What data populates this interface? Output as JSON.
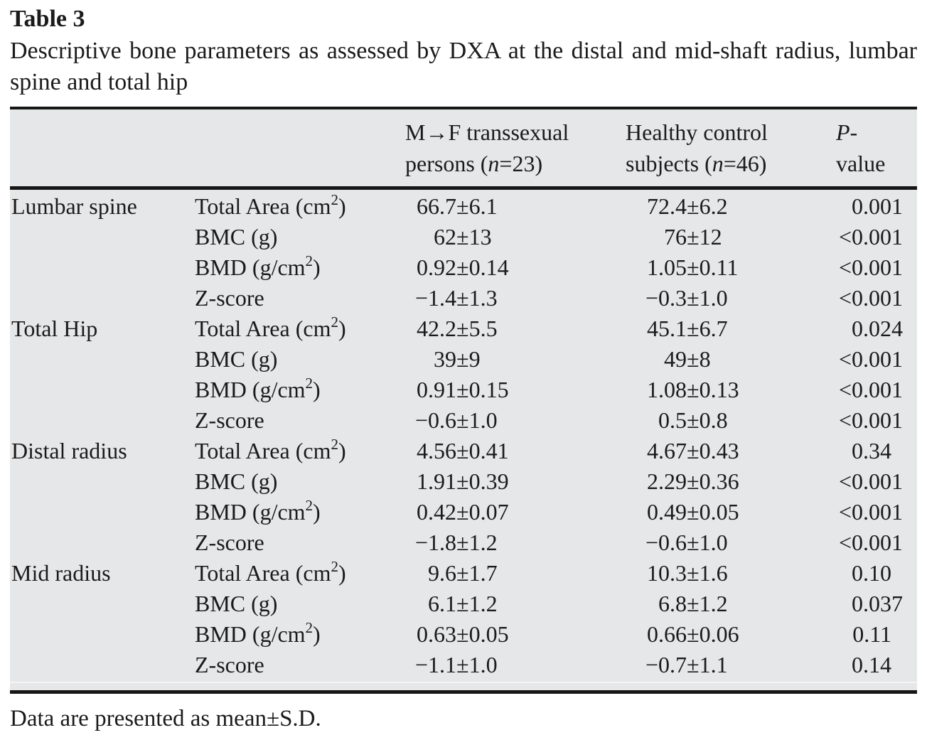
{
  "title": {
    "label": "Table 3",
    "caption": "Descriptive bone parameters as assessed by DXA at the distal and mid-shaft radius, lumbar spine and total hip"
  },
  "header": {
    "region_blank": "",
    "parameter_blank": "",
    "mf": {
      "line1": "M→F transsexual",
      "line2_pre": "persons (",
      "n": "n",
      "line2_post": "=23)"
    },
    "control": {
      "line1": "Healthy control",
      "line2_pre": "subjects (",
      "n": "n",
      "line2_post": "=46)"
    },
    "p": {
      "italic": "P",
      "rest": "-value"
    }
  },
  "table": {
    "sections": [
      {
        "region": "Lumbar spine",
        "rows": [
          {
            "param": "Total Area (cm²)",
            "mf": "66.7±6.1",
            "control": "72.4±6.2",
            "p": "0.001"
          },
          {
            "param": "BMC (g)",
            "mf": "62±13",
            "control": "76±12",
            "p": "<0.001"
          },
          {
            "param": "BMD (g/cm²)",
            "mf": "0.92±0.14",
            "control": "1.05±0.11",
            "p": "<0.001"
          },
          {
            "param": "Z-score",
            "mf": "−1.4±1.3",
            "control": "−0.3±1.0",
            "p": "<0.001"
          }
        ]
      },
      {
        "region": "Total Hip",
        "rows": [
          {
            "param": "Total Area (cm²)",
            "mf": "42.2±5.5",
            "control": "45.1±6.7",
            "p": "0.024"
          },
          {
            "param": "BMC (g)",
            "mf": "39±9",
            "control": "49±8",
            "p": "<0.001"
          },
          {
            "param": "BMD (g/cm²)",
            "mf": "0.91±0.15",
            "control": "1.08±0.13",
            "p": "<0.001"
          },
          {
            "param": "Z-score",
            "mf": "−0.6±1.0",
            "control": "0.5±0.8",
            "p": "<0.001"
          }
        ]
      },
      {
        "region": "Distal radius",
        "rows": [
          {
            "param": "Total Area (cm²)",
            "mf": "4.56±0.41",
            "control": "4.67±0.43",
            "p": "0.34"
          },
          {
            "param": "BMC (g)",
            "mf": "1.91±0.39",
            "control": "2.29±0.36",
            "p": "<0.001"
          },
          {
            "param": "BMD (g/cm²)",
            "mf": "0.42±0.07",
            "control": "0.49±0.05",
            "p": "<0.001"
          },
          {
            "param": "Z-score",
            "mf": "−1.8±1.2",
            "control": "−0.6±1.0",
            "p": "<0.001"
          }
        ]
      },
      {
        "region": "Mid radius",
        "rows": [
          {
            "param": "Total Area (cm²)",
            "mf": "9.6±1.7",
            "control": "10.3±1.6",
            "p": "0.10"
          },
          {
            "param": "BMC (g)",
            "mf": "6.1±1.2",
            "control": "6.8±1.2",
            "p": "0.037"
          },
          {
            "param": "BMD (g/cm²)",
            "mf": "0.63±0.05",
            "control": "0.66±0.06",
            "p": "0.11"
          },
          {
            "param": "Z-score",
            "mf": "−1.1±1.0",
            "control": "−0.7±1.1",
            "p": "0.14"
          }
        ]
      }
    ]
  },
  "footnote": "Data are presented as mean±S.D.",
  "colors": {
    "table_background": "#e6e7e8",
    "rule": "#161616",
    "text": "#1b1b1b"
  }
}
